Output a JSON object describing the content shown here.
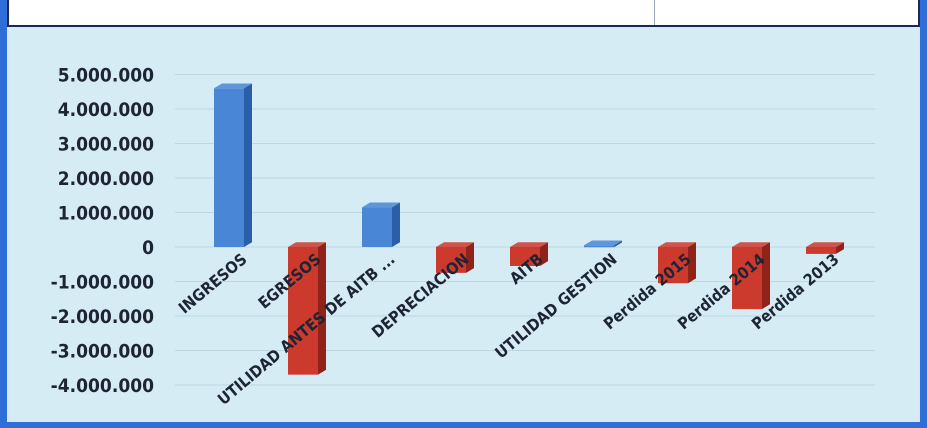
{
  "chart_data": {
    "type": "bar",
    "title": "",
    "xlabel": "",
    "ylabel": "",
    "ylim": [
      -4000000,
      5000000
    ],
    "yticks": [
      5000000,
      4000000,
      3000000,
      2000000,
      1000000,
      0,
      -1000000,
      -2000000,
      -3000000,
      -4000000
    ],
    "ytick_labels": [
      "5.000.000",
      "4.000.000",
      "3.000.000",
      "2.000.000",
      "1.000.000",
      "0",
      "-1.000.000",
      "-2.000.000",
      "-3.000.000",
      "-4.000.000"
    ],
    "categories": [
      "INGRESOS",
      "EGRESOS",
      "UTILIDAD ANTES DE AITB ...",
      "DEPRECIACION",
      "AITB",
      "UTILIDAD GESTION",
      "Perdida 2015",
      "Perdida 2014",
      "Perdida 2013"
    ],
    "values": [
      4600000,
      -3700000,
      1150000,
      -750000,
      -550000,
      50000,
      -1050000,
      -1800000,
      -200000
    ],
    "grid": true,
    "legend": "none",
    "colors": {
      "positive": "#4a86d6",
      "positive_dark": "#2a5ea8",
      "negative": "#cc3a2e",
      "negative_dark": "#8f2219",
      "background": "#d6ecf5",
      "frame": "#2f6ed8"
    }
  }
}
